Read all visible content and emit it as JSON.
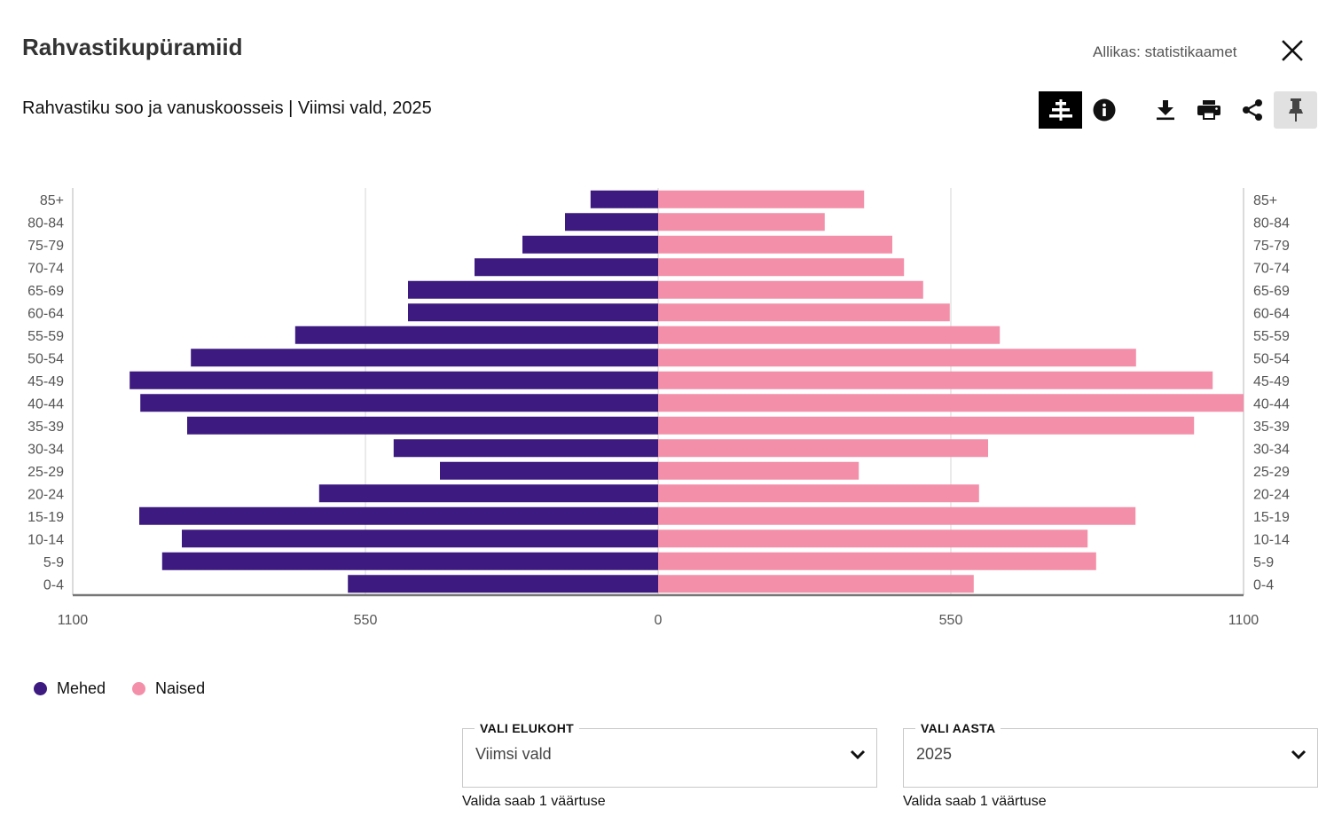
{
  "header": {
    "title": "Rahvastikupüramiid",
    "subtitle": "Rahvastiku soo ja vanuskoosseis | Viimsi vald, 2025",
    "source": "Allikas: statistikaamet"
  },
  "toolbar": {
    "buttons": [
      {
        "icon": "pyramid-chart-icon",
        "active": true
      },
      {
        "icon": "info-icon"
      },
      {
        "icon": "download-icon"
      },
      {
        "icon": "print-icon"
      },
      {
        "icon": "share-icon"
      },
      {
        "icon": "pin-icon",
        "pinned": true
      }
    ],
    "close_icon": "close-icon"
  },
  "legend": {
    "items": [
      {
        "label": "Mehed",
        "color": "#3d1a80"
      },
      {
        "label": "Naised",
        "color": "#f38fa9"
      }
    ]
  },
  "filters": {
    "place": {
      "label": "VALI ELUKOHT",
      "value": "Viimsi vald",
      "hint": "Valida saab 1 väärtuse"
    },
    "year": {
      "label": "VALI AASTA",
      "value": "2025",
      "hint": "Valida saab 1 väärtuse"
    }
  },
  "chart_data": {
    "type": "bar",
    "orientation": "horizontal-diverging",
    "title": "Rahvastiku soo ja vanuskoosseis | Viimsi vald, 2025",
    "categories": [
      "0-4",
      "5-9",
      "10-14",
      "15-19",
      "20-24",
      "25-29",
      "30-34",
      "35-39",
      "40-44",
      "45-49",
      "50-54",
      "55-59",
      "60-64",
      "65-69",
      "70-74",
      "75-79",
      "80-84",
      "85+"
    ],
    "series": [
      {
        "name": "Mehed",
        "color": "#3d1a80",
        "side": "left",
        "values": [
          583,
          932,
          895,
          975,
          637,
          410,
          497,
          885,
          973,
          993,
          878,
          682,
          470,
          470,
          345,
          255,
          175,
          127
        ]
      },
      {
        "name": "Naised",
        "color": "#f38fa9",
        "side": "right",
        "values": [
          593,
          823,
          807,
          897,
          603,
          377,
          620,
          1007,
          1100,
          1042,
          898,
          642,
          548,
          498,
          462,
          440,
          313,
          387
        ]
      }
    ],
    "xaxis_ticks": [
      "1100",
      "550",
      "0",
      "550",
      "1100"
    ],
    "xlim": [
      -1100,
      1100
    ],
    "xlabel": "",
    "ylabel": "",
    "grid": true,
    "legend_position": "bottom-left"
  }
}
